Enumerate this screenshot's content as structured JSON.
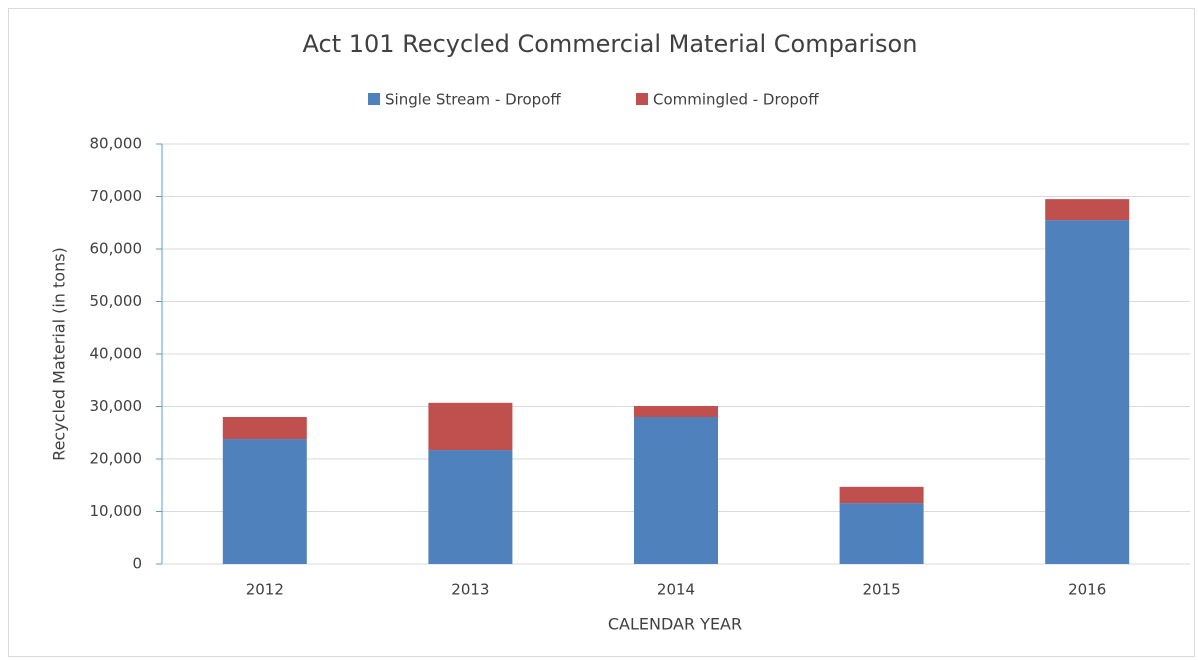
{
  "chart_data": {
    "type": "bar",
    "stacked": true,
    "title": "Act 101 Recycled Commercial Material Comparison",
    "x_label": "CALENDAR YEAR",
    "y_label": "Recycled Material (in tons)",
    "categories": [
      "2012",
      "2013",
      "2014",
      "2015",
      "2016"
    ],
    "series": [
      {
        "name": "Single Stream - Dropoff",
        "color": "#4f81bd",
        "values": [
          23800,
          21700,
          28000,
          11600,
          65500
        ]
      },
      {
        "name": "Commingled - Dropoff",
        "color": "#c0504d",
        "values": [
          4200,
          9000,
          2100,
          3100,
          4000
        ]
      }
    ],
    "ylim": [
      0,
      80000
    ],
    "yticks": [
      0,
      {
        "value": 10000,
        "label": "10,000"
      },
      {
        "value": 20000,
        "label": "20,000"
      },
      {
        "value": 30000,
        "label": "30,000"
      },
      {
        "value": 40000,
        "label": "40,000"
      },
      {
        "value": 50000,
        "label": "50,000"
      },
      {
        "value": 60000,
        "label": "60,000"
      },
      {
        "value": 70000,
        "label": "70,000"
      },
      {
        "value": 80000,
        "label": "80,000"
      }
    ],
    "grid": true,
    "legend": "top"
  }
}
